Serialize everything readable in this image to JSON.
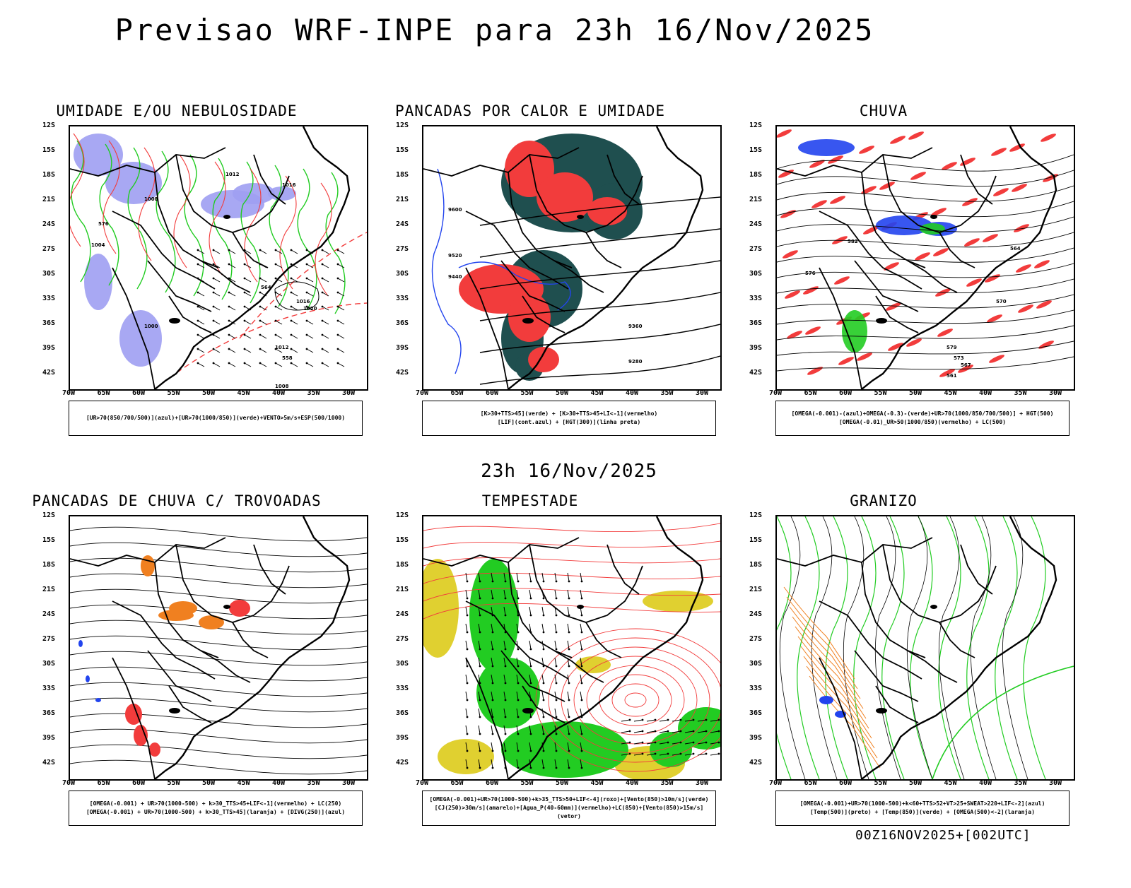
{
  "title": "Previsao WRF-INPE  para 23h 16/Nov/2025",
  "mid_date": "23h 16/Nov/2025",
  "footer": "00Z16NOV2025+[002UTC]",
  "axes": {
    "lat_labels": [
      "12S",
      "15S",
      "18S",
      "21S",
      "24S",
      "27S",
      "30S",
      "33S",
      "36S",
      "39S",
      "42S"
    ],
    "lon_labels": [
      "70W",
      "65W",
      "60W",
      "55W",
      "50W",
      "45W",
      "40W",
      "35W",
      "30W"
    ]
  },
  "panels": [
    {
      "id": "umidade",
      "title": "UMIDADE E/OU NEBULOSIDADE",
      "legend": [
        "[UR>70(850/700/500)](azul)+[UR>70(1000/850)](verde)+VENTO>5m/s+ESP(500/1000)"
      ]
    },
    {
      "id": "pancadas-calor",
      "title": "PANCADAS POR CALOR E UMIDADE",
      "legend": [
        "[K>30+TTS>45](verde)  +  [K>30+TTS>45+LI<-1](vermelho)",
        "[LIF](cont.azul)  +  [HGT(300)](linha preta)"
      ]
    },
    {
      "id": "chuva",
      "title": "CHUVA",
      "legend": [
        "[OMEGA(-0.001)-(azul)+OMEGA(-0.3)-(verde)+UR>70(1000/850/700/500)]  +  HGT(500)",
        "[OMEGA(-0.01)_UR>50(1000/850)(vermelho)  +  LC(500)"
      ]
    },
    {
      "id": "pancadas-trovoadas",
      "title": "PANCADAS DE CHUVA C/ TROVOADAS",
      "legend": [
        "[OMEGA(-0.001)  +  UR>70(1000-500)  +  k>30_TTS>45+LIF<-1](vermelho)  +  LC(250)",
        "[OMEGA(-0.001)  +  UR>70(1000-500)  +  k>30_TTS>45](laranja)  +  [DIVG(250)](azul)"
      ]
    },
    {
      "id": "tempestade",
      "title": "TEMPESTADE",
      "legend": [
        "[OMEGA(-0.001)+UR>70(1000-500)+k>35_TTS>50+LIF<-4](roxo)+[Vento(850)>10m/s](verde)",
        "[CJ(250)>30m/s](amarelo)+[Agua_P(40-60mm)](vermelho)+LC(850)+[Vento(850)>15m/s](vetor)"
      ]
    },
    {
      "id": "granizo",
      "title": "GRANIZO",
      "legend": [
        "[OMEGA(-0.001)+UR>70(1000-500)+k<60+TTS>52+VT>25+SWEAT>220+LIF<-2](azul)",
        "[Temp(500)](preto)  +  [Temp(850)](verde)  +  [OMEGA(500)<-2](laranja)"
      ]
    }
  ],
  "map_labels": {
    "umidade": [
      "1012",
      "1016",
      "1008",
      "1004",
      "1000",
      "1020",
      "1016",
      "1012",
      "1008",
      "576",
      "564",
      "558"
    ],
    "pancadas-calor": [
      "9600",
      "9520",
      "9440",
      "9360",
      "9280"
    ],
    "chuva": [
      "582",
      "576",
      "570",
      "564",
      "579",
      "573",
      "567",
      "561"
    ]
  },
  "colors": {
    "red": "#f23c3c",
    "green": "#22cc22",
    "blue": "#2244ee",
    "lavender": "#9f9ff2",
    "darkteal": "#1f4f4f",
    "orange": "#f08020",
    "yellow": "#e0d030"
  }
}
